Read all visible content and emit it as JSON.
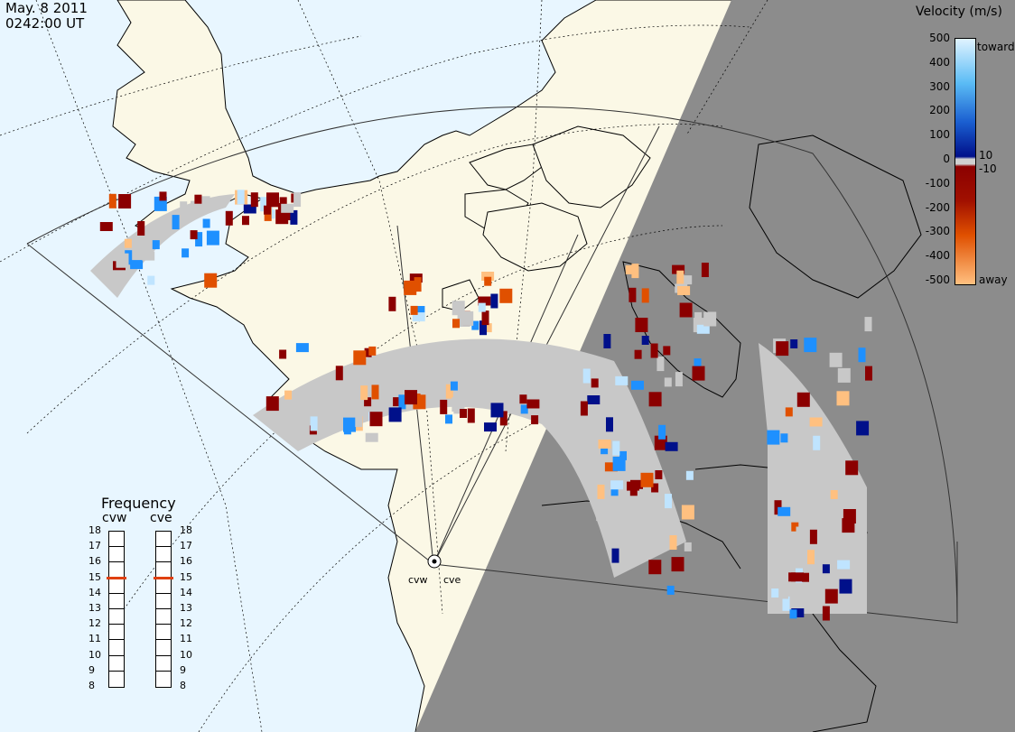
{
  "header": {
    "date": "May. 8 2011",
    "time": "0242:00 UT"
  },
  "velocity_scale": {
    "title": "Velocity (m/s)",
    "ticks": [
      "500",
      "400",
      "300",
      "200",
      "100",
      "0",
      "-100",
      "-200",
      "-300",
      "-400",
      "-500"
    ],
    "inner_ticks": [
      "10",
      "-10"
    ],
    "toward_label": "toward",
    "away_label": "away",
    "colors": {
      "toward_light": "#bfe4ff",
      "toward_mid": "#1e90ff",
      "toward_dark": "#00108a",
      "away_dark": "#8b0000",
      "away_mid": "#e05000",
      "away_light": "#ffd0a0",
      "ground_scatter": "#c8c8c8",
      "night": "#8c8c8c",
      "land": "#fbf8e6",
      "ocean": "#e8f6ff"
    }
  },
  "frequency": {
    "title": "Frequency",
    "radars": [
      {
        "name": "cvw",
        "value": 15
      },
      {
        "name": "cve",
        "value": 15
      }
    ],
    "scale": [
      "18",
      "17",
      "16",
      "15",
      "14",
      "13",
      "12",
      "11",
      "10",
      "9",
      "8"
    ],
    "marker_color": "#e04010"
  },
  "sites": [
    {
      "code": "cvw"
    },
    {
      "code": "cve"
    }
  ]
}
